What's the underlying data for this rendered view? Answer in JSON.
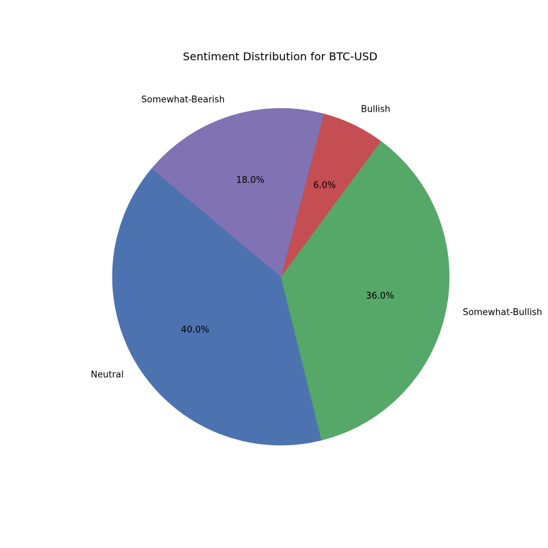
{
  "chart_data": {
    "type": "pie",
    "title": "Sentiment Distribution for BTC-USD",
    "start_angle_deg": 140,
    "direction": "counterclockwise",
    "slices": [
      {
        "label": "Neutral",
        "value": 40.0,
        "pct_text": "40.0%",
        "color": "#4c72b0"
      },
      {
        "label": "Somewhat-Bullish",
        "value": 36.0,
        "pct_text": "36.0%",
        "color": "#55a868"
      },
      {
        "label": "Bullish",
        "value": 6.0,
        "pct_text": "6.0%",
        "color": "#c44e52"
      },
      {
        "label": "Somewhat-Bearish",
        "value": 18.0,
        "pct_text": "18.0%",
        "color": "#8172b3"
      }
    ]
  }
}
